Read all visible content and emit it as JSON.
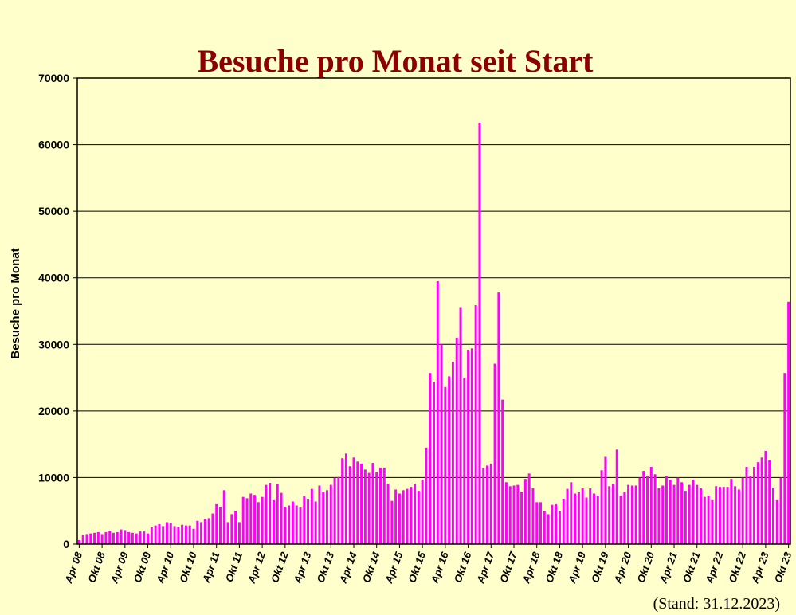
{
  "chart_data": {
    "type": "bar",
    "title": "Besuche pro Monat seit Start",
    "ylabel": "Besuche pro Monat",
    "xlabel": "",
    "ylim": [
      0,
      70000
    ],
    "yticks": [
      0,
      10000,
      20000,
      30000,
      40000,
      50000,
      60000,
      70000
    ],
    "xticks": [
      "Apr 08",
      "Okt 08",
      "Apr 09",
      "Okt 09",
      "Apr 10",
      "Okt 10",
      "Apr 11",
      "Okt 11",
      "Apr 12",
      "Okt 12",
      "Apr 13",
      "Okt 13",
      "Apr 14",
      "Okt 14",
      "Apr 15",
      "Okt 15",
      "Apr 16",
      "Okt 16",
      "Apr 17",
      "Okt 17",
      "Apr 18",
      "Okt 18",
      "Apr 19",
      "Okt 19",
      "Apr 20",
      "Okt 20",
      "Apr 21",
      "Okt 21",
      "Apr 22",
      "Okt 22",
      "Apr 23",
      "Okt 23"
    ],
    "x_start": "Apr 08",
    "x_end": "Dez 23",
    "bar_color": "#ff00ff",
    "grid": "horizontal",
    "footnote": "(Stand: 31.12.2023)",
    "values": [
      600,
      1400,
      1500,
      1600,
      1700,
      1800,
      1500,
      1800,
      2000,
      1700,
      1800,
      2200,
      2100,
      1800,
      1700,
      1600,
      1900,
      1900,
      1600,
      2600,
      2800,
      3000,
      2700,
      3300,
      3200,
      2700,
      2600,
      2900,
      2800,
      2800,
      2300,
      3500,
      3300,
      3800,
      3900,
      4600,
      6000,
      5600,
      8100,
      3300,
      4500,
      5000,
      3300,
      7100,
      6900,
      7600,
      7400,
      6300,
      7100,
      8900,
      9200,
      6600,
      9000,
      7700,
      5600,
      5800,
      6400,
      5800,
      5500,
      7200,
      6700,
      8300,
      6400,
      8800,
      7800,
      8100,
      8900,
      10000,
      10100,
      12900,
      13600,
      11700,
      13000,
      12400,
      12100,
      11200,
      10700,
      12200,
      10800,
      11500,
      11500,
      9100,
      6500,
      8200,
      7600,
      8100,
      8300,
      8600,
      9100,
      8000,
      9700,
      14500,
      25700,
      24400,
      39500,
      30000,
      23600,
      25200,
      27400,
      31000,
      35600,
      25000,
      29200,
      29400,
      35900,
      63300,
      11400,
      11800,
      12100,
      27100,
      37800,
      21700,
      9300,
      8700,
      8800,
      8900,
      7900,
      9800,
      10600,
      8400,
      6300,
      6300,
      5000,
      4500,
      5900,
      6000,
      5000,
      6800,
      8300,
      9300,
      7600,
      7800,
      8400,
      7000,
      8400,
      7600,
      7300,
      11100,
      13100,
      8700,
      9100,
      14200,
      7300,
      7800,
      8900,
      8800,
      8800,
      10000,
      11000,
      10300,
      11600,
      10500,
      8400,
      8800,
      10200,
      9700,
      8900,
      10000,
      9300,
      8000,
      8900,
      9700,
      8900,
      8400,
      7100,
      7300,
      6600,
      8700,
      8600,
      8600,
      8600,
      9800,
      8700,
      8200,
      10000,
      11600,
      10200,
      11600,
      12300,
      13000,
      14000,
      12600,
      8500,
      6600,
      10000,
      25700,
      36400
    ]
  }
}
